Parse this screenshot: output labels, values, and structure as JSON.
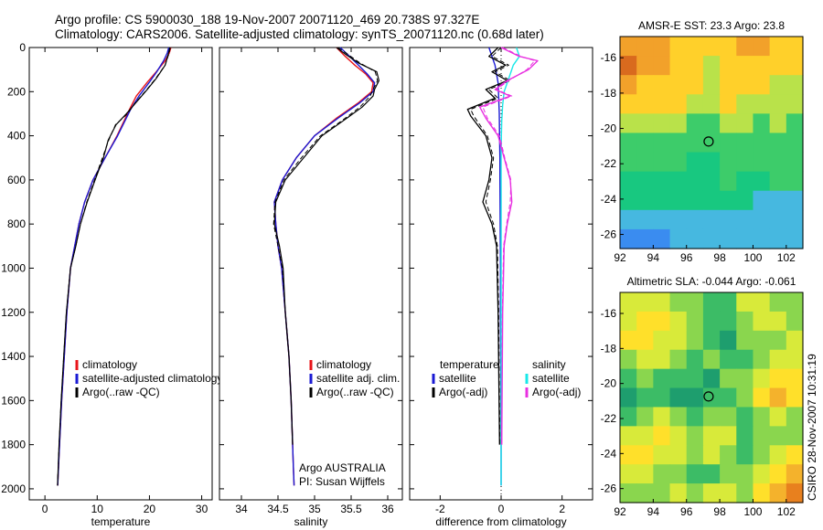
{
  "header": {
    "line1": "Argo profile: CS 5900030_188 19-Nov-2007 20071120_469 20.738S 97.327E",
    "line2": "Climatology: CARS2006. Satellite-adjusted climatology: synTS_20071120.nc (0.68d later)"
  },
  "side_label": "CSIRO 28-Nov-2007 10:31:19",
  "chart_data": [
    {
      "type": "line",
      "xlabel": "temperature",
      "xlim": [
        -3,
        32
      ],
      "ylim": [
        0,
        2050
      ],
      "y_reversed": true,
      "xticks": [
        0,
        10,
        20,
        30
      ],
      "yticks": [
        0,
        200,
        400,
        600,
        800,
        1000,
        1200,
        1400,
        1600,
        1800,
        2000
      ],
      "legend": {
        "placement": "lower-right",
        "entries": [
          "climatology",
          "satellite-adjusted climatology",
          "Argo(..raw -QC)"
        ]
      },
      "series": [
        {
          "name": "climatology",
          "color": "#e8141a",
          "width": 1.4,
          "x": [
            24.1,
            23.8,
            23.0,
            21.3,
            19.5,
            17.5,
            16.2,
            13.8,
            11.5,
            9.2,
            7.6,
            6.5,
            5.7,
            4.9,
            4.2,
            3.7,
            3.2,
            2.8,
            2.6,
            2.45
          ],
          "y": [
            0,
            25,
            60,
            110,
            160,
            220,
            280,
            400,
            500,
            600,
            700,
            800,
            900,
            1000,
            1200,
            1400,
            1600,
            1800,
            1900,
            1985
          ]
        },
        {
          "name": "satellite-adjusted climatology",
          "color": "#1a1ad4",
          "width": 1.4,
          "x": [
            23.7,
            23.4,
            22.7,
            21.4,
            19.9,
            18.0,
            16.4,
            13.9,
            11.5,
            9.2,
            7.6,
            6.5,
            5.7,
            4.9,
            4.2,
            3.7,
            3.2,
            2.8,
            2.6,
            2.45
          ],
          "y": [
            0,
            25,
            60,
            110,
            160,
            220,
            280,
            400,
            500,
            600,
            700,
            800,
            900,
            1000,
            1200,
            1400,
            1600,
            1800,
            1900,
            1985
          ]
        },
        {
          "name": "Argo(..raw -QC)",
          "color": "#000000",
          "width": 1.2,
          "x": [
            23.9,
            23.6,
            23.0,
            21.3,
            19.6,
            17.4,
            15.6,
            13.6,
            12.1,
            11.2,
            9.6,
            8.1,
            6.8,
            5.9,
            4.9,
            4.1,
            3.6,
            3.1,
            2.7,
            2.4
          ],
          "y": [
            0,
            30,
            80,
            140,
            190,
            250,
            300,
            350,
            420,
            500,
            600,
            700,
            800,
            900,
            1000,
            1200,
            1400,
            1600,
            1800,
            1985
          ]
        },
        {
          "name": "Argo(-adj)",
          "color": "#000000",
          "width": 1.0,
          "dash": "5,3",
          "x": [
            24.0,
            23.7,
            23.0,
            21.2,
            19.5,
            17.3,
            15.8,
            13.5,
            12.2,
            11.0,
            9.5,
            8.0,
            6.8,
            5.9,
            4.9,
            4.1,
            3.6,
            3.1,
            2.7,
            2.4
          ],
          "y": [
            0,
            30,
            80,
            140,
            190,
            250,
            300,
            350,
            420,
            500,
            600,
            700,
            800,
            900,
            1000,
            1200,
            1400,
            1600,
            1800,
            1985
          ]
        }
      ]
    },
    {
      "type": "line",
      "xlabel": "salinity",
      "xlim": [
        33.7,
        36.2
      ],
      "ylim": [
        0,
        2050
      ],
      "y_reversed": true,
      "xticks": [
        34,
        34.5,
        35,
        35.5,
        36
      ],
      "legend": {
        "placement": "middle-right",
        "entries": [
          "climatology",
          "satellite adj. clim.",
          "Argo(..raw -QC)"
        ]
      },
      "annotations": [
        "Argo AUSTRALIA",
        "PI: Susan Wijffels"
      ],
      "series": [
        {
          "name": "climatology",
          "color": "#e8141a",
          "width": 1.4,
          "x": [
            35.3,
            35.42,
            35.55,
            35.7,
            35.8,
            35.78,
            35.6,
            35.3,
            35.0,
            34.75,
            34.56,
            34.45,
            34.47,
            34.5,
            34.55,
            34.6,
            34.65,
            34.68,
            34.7,
            34.71,
            34.72
          ],
          "y": [
            0,
            40,
            80,
            120,
            160,
            200,
            250,
            320,
            400,
            500,
            600,
            700,
            800,
            900,
            1000,
            1200,
            1400,
            1600,
            1800,
            1900,
            1985
          ]
        },
        {
          "name": "satellite adj. clim.",
          "color": "#1a1ad4",
          "width": 1.4,
          "x": [
            35.35,
            35.48,
            35.6,
            35.72,
            35.82,
            35.8,
            35.62,
            35.32,
            35.0,
            34.75,
            34.56,
            34.45,
            34.47,
            34.5,
            34.55,
            34.6,
            34.65,
            34.68,
            34.7,
            34.71,
            34.72
          ],
          "y": [
            0,
            40,
            80,
            120,
            160,
            200,
            250,
            320,
            400,
            500,
            600,
            700,
            800,
            900,
            1000,
            1200,
            1400,
            1600,
            1800,
            1900,
            1985
          ]
        },
        {
          "name": "Argo(..raw -QC)",
          "color": "#000000",
          "width": 1.2,
          "x": [
            35.3,
            35.42,
            35.6,
            35.85,
            35.88,
            35.82,
            35.8,
            35.65,
            35.4,
            35.1,
            34.85,
            34.6,
            34.47,
            34.45,
            34.52,
            34.57,
            34.6,
            34.65,
            34.68,
            34.7
          ],
          "y": [
            0,
            30,
            70,
            110,
            150,
            190,
            220,
            270,
            330,
            400,
            500,
            600,
            700,
            800,
            900,
            1000,
            1200,
            1400,
            1600,
            1800
          ]
        },
        {
          "name": "Argo(-adj)",
          "color": "#000000",
          "width": 1.0,
          "dash": "5,3",
          "x": [
            35.32,
            35.45,
            35.62,
            35.83,
            35.86,
            35.8,
            35.76,
            35.62,
            35.38,
            35.08,
            34.82,
            34.58,
            34.46,
            34.44,
            34.5,
            34.56,
            34.6,
            34.65,
            34.68,
            34.7
          ],
          "y": [
            0,
            30,
            70,
            110,
            150,
            190,
            220,
            270,
            330,
            400,
            500,
            600,
            700,
            800,
            900,
            1000,
            1200,
            1400,
            1600,
            1800
          ]
        }
      ]
    },
    {
      "type": "line",
      "xlabel": "difference from climatology",
      "xlim": [
        -3,
        3
      ],
      "ylim": [
        0,
        2050
      ],
      "y_reversed": true,
      "xticks": [
        -2,
        0,
        2
      ],
      "zero_line": true,
      "legend": {
        "placement": "middle",
        "entries": [
          "temperature",
          "satellite",
          "Argo(-adj)",
          "salinity",
          "satellite",
          "Argo(-adj)"
        ]
      },
      "series": [
        {
          "name": "satellite",
          "group": "temperature",
          "color": "#1a1ad4",
          "width": 1.4,
          "x": [
            -0.4,
            -0.3,
            -0.2,
            -0.15,
            -0.1,
            -0.08,
            -0.06,
            -0.05,
            -0.04,
            -0.04,
            -0.03,
            -0.02,
            -0.02,
            -0.01,
            0,
            0
          ],
          "y": [
            0,
            40,
            80,
            120,
            160,
            220,
            300,
            400,
            500,
            600,
            800,
            1000,
            1200,
            1500,
            1800,
            1985
          ]
        },
        {
          "name": "Argo(-adj)",
          "group": "temperature",
          "color": "#000000",
          "width": 1.3,
          "x": [
            -0.1,
            -0.4,
            0.15,
            -0.3,
            0.2,
            -0.5,
            -0.2,
            -1.1,
            -1.0,
            -0.5,
            -0.3,
            -0.4,
            -0.6,
            -0.3,
            -0.15,
            -0.1,
            -0.05
          ],
          "y": [
            0,
            40,
            80,
            110,
            150,
            190,
            230,
            280,
            310,
            400,
            500,
            600,
            700,
            800,
            900,
            1200,
            1800
          ]
        },
        {
          "name": "Argo(-adj) raw",
          "group": "temperature",
          "color": "#000000",
          "width": 1.0,
          "dash": "5,3",
          "x": [
            0.0,
            -0.3,
            0.25,
            -0.2,
            0.3,
            -0.4,
            -0.1,
            -1.0,
            -0.9,
            -0.45,
            -0.25,
            -0.35,
            -0.5,
            -0.25,
            -0.12,
            -0.08,
            -0.04
          ],
          "y": [
            0,
            40,
            80,
            110,
            150,
            190,
            230,
            280,
            310,
            400,
            500,
            600,
            700,
            800,
            900,
            1200,
            1800
          ]
        },
        {
          "name": "satellite",
          "group": "salinity",
          "color": "#18e8e8",
          "width": 1.4,
          "x": [
            0.5,
            0.6,
            0.4,
            0.3,
            0.2,
            0.1,
            0.05,
            0.02,
            0.01,
            0.0,
            0.0,
            0.0,
            0.0,
            0.0,
            0.0,
            0.0
          ],
          "y": [
            0,
            40,
            80,
            120,
            160,
            200,
            260,
            330,
            400,
            500,
            600,
            800,
            1000,
            1400,
            1800,
            1985
          ]
        },
        {
          "name": "Argo(-adj)",
          "group": "salinity",
          "color": "#e830e0",
          "width": 1.4,
          "x": [
            0.0,
            0.6,
            1.2,
            0.9,
            0.2,
            -0.2,
            0.3,
            -0.7,
            -0.5,
            -0.1,
            0.1,
            0.3,
            0.35,
            0.2,
            0.1,
            0.05,
            0.02
          ],
          "y": [
            0,
            40,
            60,
            100,
            150,
            190,
            220,
            270,
            320,
            400,
            500,
            600,
            700,
            800,
            900,
            1200,
            1800
          ]
        },
        {
          "name": "Argo(-adj) raw",
          "group": "salinity",
          "color": "#e830e0",
          "width": 1.0,
          "dash": "5,3",
          "x": [
            0.05,
            0.65,
            1.1,
            0.85,
            0.25,
            -0.15,
            0.35,
            -0.6,
            -0.45,
            -0.05,
            0.12,
            0.32,
            0.3,
            0.18,
            0.08,
            0.04,
            0.02
          ],
          "y": [
            0,
            40,
            60,
            100,
            150,
            190,
            220,
            270,
            320,
            400,
            500,
            600,
            700,
            800,
            900,
            1200,
            1800
          ]
        }
      ]
    },
    {
      "type": "heatmap",
      "title": "AMSR-E SST: 23.3 Argo: 23.8",
      "xlim": [
        92,
        103
      ],
      "ylim": [
        -26.8,
        -14.8
      ],
      "xticks": [
        92,
        94,
        96,
        98,
        100,
        102
      ],
      "yticks": [
        -16,
        -18,
        -20,
        -22,
        -24,
        -26
      ],
      "marker": {
        "x": 97.33,
        "y": -20.74
      },
      "palette": [
        "#d96a1e",
        "#f2a12a",
        "#ffd02a",
        "#b9e24a",
        "#3dcc6a",
        "#18c880",
        "#46b8e0",
        "#3a8cf0"
      ],
      "grid": [
        [
          1,
          1,
          1,
          2,
          2,
          2,
          2,
          1,
          1,
          2,
          2
        ],
        [
          0,
          1,
          1,
          2,
          2,
          3,
          2,
          2,
          2,
          2,
          2
        ],
        [
          1,
          2,
          2,
          2,
          2,
          3,
          2,
          2,
          2,
          3,
          3
        ],
        [
          2,
          2,
          2,
          2,
          3,
          3,
          2,
          3,
          3,
          3,
          3
        ],
        [
          3,
          3,
          3,
          3,
          4,
          4,
          3,
          3,
          4,
          3,
          4
        ],
        [
          4,
          4,
          4,
          4,
          4,
          4,
          4,
          4,
          4,
          4,
          4
        ],
        [
          4,
          4,
          4,
          4,
          5,
          5,
          4,
          4,
          4,
          4,
          4
        ],
        [
          5,
          5,
          5,
          5,
          5,
          5,
          4,
          5,
          5,
          4,
          4
        ],
        [
          5,
          5,
          5,
          5,
          5,
          5,
          5,
          5,
          6,
          6,
          6
        ],
        [
          6,
          6,
          6,
          6,
          6,
          6,
          6,
          6,
          6,
          6,
          6
        ],
        [
          7,
          7,
          7,
          6,
          6,
          6,
          6,
          6,
          6,
          6,
          6
        ]
      ]
    },
    {
      "type": "heatmap",
      "title": "Altimetric SLA: -0.044 Argo: -0.061",
      "xlim": [
        92,
        103
      ],
      "ylim": [
        -26.8,
        -14.8
      ],
      "xticks": [
        92,
        94,
        96,
        98,
        100,
        102
      ],
      "yticks": [
        -16,
        -18,
        -20,
        -22,
        -24,
        -26
      ],
      "marker": {
        "x": 97.33,
        "y": -20.74
      },
      "palette": [
        "#e8801e",
        "#f4b22c",
        "#ffe02a",
        "#d8ea3a",
        "#8ad64e",
        "#3cbc66",
        "#1e9e6e"
      ],
      "grid": [
        [
          3,
          3,
          3,
          4,
          4,
          5,
          5,
          3,
          3,
          4,
          4
        ],
        [
          3,
          2,
          2,
          3,
          4,
          5,
          5,
          4,
          3,
          3,
          4
        ],
        [
          2,
          2,
          3,
          3,
          4,
          5,
          6,
          4,
          4,
          4,
          3
        ],
        [
          4,
          3,
          3,
          4,
          5,
          4,
          5,
          5,
          4,
          3,
          3
        ],
        [
          5,
          4,
          5,
          5,
          5,
          6,
          4,
          4,
          3,
          2,
          2
        ],
        [
          6,
          5,
          5,
          6,
          6,
          5,
          5,
          4,
          2,
          1,
          2
        ],
        [
          5,
          4,
          3,
          4,
          5,
          4,
          4,
          5,
          4,
          3,
          4
        ],
        [
          3,
          3,
          2,
          3,
          4,
          3,
          3,
          5,
          4,
          4,
          4
        ],
        [
          2,
          2,
          3,
          3,
          4,
          3,
          4,
          5,
          4,
          3,
          2
        ],
        [
          3,
          3,
          4,
          4,
          5,
          5,
          4,
          4,
          3,
          2,
          1
        ],
        [
          4,
          4,
          4,
          3,
          4,
          3,
          3,
          4,
          2,
          1,
          0
        ]
      ]
    }
  ]
}
